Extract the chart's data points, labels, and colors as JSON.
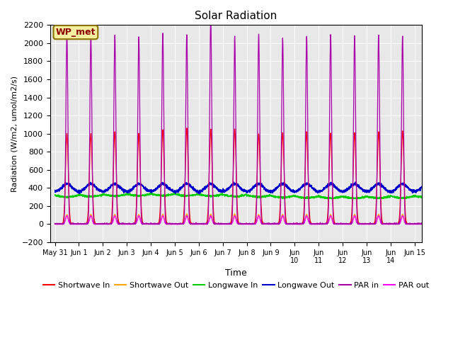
{
  "title": "Solar Radiation",
  "ylabel": "Radiation (W/m2, umol/m2/s)",
  "xlabel": "Time",
  "ylim": [
    -200,
    2200
  ],
  "yticks": [
    -200,
    0,
    200,
    400,
    600,
    800,
    1000,
    1200,
    1400,
    1600,
    1800,
    2000,
    2200
  ],
  "annotation": "WP_met",
  "bg_color": "#e8e8e8",
  "series": {
    "shortwave_in": {
      "color": "#ff0000",
      "label": "Shortwave In"
    },
    "shortwave_out": {
      "color": "#ffa500",
      "label": "Shortwave Out"
    },
    "longwave_in": {
      "color": "#00cc00",
      "label": "Longwave In"
    },
    "longwave_out": {
      "color": "#0000cc",
      "label": "Longwave Out"
    },
    "par_in": {
      "color": "#aa00aa",
      "label": "PAR in"
    },
    "par_out": {
      "color": "#ff00ff",
      "label": "PAR out"
    }
  },
  "tick_labels": [
    "May 31",
    "Jun 1",
    "Jun 2",
    "Jun 3",
    "Jun 4",
    "Jun 5",
    "Jun 6",
    "Jun 7",
    "Jun 8",
    "Jun 9",
    "Jun\n10",
    "Jun\n11",
    "Jun\n12",
    "Jun\n13",
    "Jun\n14",
    "Jun 15"
  ],
  "n_days": 16
}
